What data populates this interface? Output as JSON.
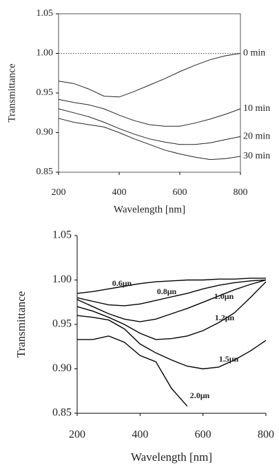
{
  "chart_data": [
    {
      "type": "line",
      "xlabel": "Wavelength [nm]",
      "ylabel": "Transmittance",
      "frame": "box",
      "refline": 1.0,
      "x": [
        200,
        250,
        300,
        350,
        400,
        450,
        500,
        550,
        600,
        650,
        700,
        750,
        800
      ],
      "series": [
        {
          "name": "0 min",
          "color": "#222222",
          "values": [
            0.965,
            0.962,
            0.955,
            0.946,
            0.945,
            0.952,
            0.96,
            0.968,
            0.977,
            0.985,
            0.992,
            0.997,
            1.0
          ]
        },
        {
          "name": "10 min",
          "color": "#222222",
          "values": [
            0.942,
            0.938,
            0.935,
            0.93,
            0.922,
            0.915,
            0.91,
            0.908,
            0.908,
            0.912,
            0.917,
            0.923,
            0.93
          ]
        },
        {
          "name": "20 min",
          "color": "#222222",
          "values": [
            0.93,
            0.925,
            0.92,
            0.913,
            0.905,
            0.898,
            0.892,
            0.888,
            0.885,
            0.885,
            0.887,
            0.891,
            0.895
          ]
        },
        {
          "name": "30 min",
          "color": "#222222",
          "values": [
            0.918,
            0.913,
            0.91,
            0.907,
            0.9,
            0.892,
            0.885,
            0.878,
            0.873,
            0.869,
            0.866,
            0.867,
            0.87
          ]
        }
      ],
      "xlim": [
        200,
        800
      ],
      "xticks": [
        200,
        400,
        600,
        800
      ],
      "ylim": [
        0.85,
        1.05
      ],
      "yticks": [
        0.85,
        {
          "value": 0.9,
          "label": "0.90"
        },
        0.95,
        {
          "value": 1.0,
          "label": "1.00"
        },
        1.05
      ]
    },
    {
      "type": "line",
      "xlabel": "Wavelength [nm]",
      "ylabel": "Transmittance",
      "frame": "axes",
      "x": [
        200,
        250,
        300,
        350,
        400,
        450,
        500,
        550,
        600,
        650,
        700,
        750,
        800
      ],
      "series": [
        {
          "name": "0.6μn",
          "color": "#000000",
          "values": [
            0.985,
            0.987,
            0.99,
            0.993,
            0.996,
            0.998,
            0.999,
            1.0,
            1.0,
            1.001,
            1.001,
            1.002,
            1.002
          ]
        },
        {
          "name": "0.8μn",
          "color": "#000000",
          "values": [
            0.98,
            0.976,
            0.972,
            0.971,
            0.973,
            0.977,
            0.981,
            0.985,
            0.99,
            0.994,
            0.997,
            0.999,
            1.0
          ]
        },
        {
          "name": "1.0μn",
          "color": "#000000",
          "values": [
            0.978,
            0.97,
            0.962,
            0.956,
            0.953,
            0.956,
            0.962,
            0.968,
            0.975,
            0.982,
            0.989,
            0.995,
            1.0
          ]
        },
        {
          "name": "1.2μn",
          "color": "#000000",
          "values": [
            0.97,
            0.965,
            0.958,
            0.95,
            0.94,
            0.933,
            0.934,
            0.937,
            0.943,
            0.952,
            0.963,
            0.98,
            0.998
          ]
        },
        {
          "name": "1.5μn",
          "color": "#000000",
          "values": [
            0.96,
            0.958,
            0.955,
            0.945,
            0.928,
            0.918,
            0.91,
            0.903,
            0.9,
            0.902,
            0.91,
            0.92,
            0.932
          ]
        },
        {
          "name": "2.0μn",
          "color": "#000000",
          "values": [
            0.933,
            0.933,
            0.937,
            0.93,
            0.915,
            0.908,
            0.878,
            0.858,
            null,
            null,
            null,
            null,
            null
          ]
        }
      ],
      "xlim": [
        200,
        800
      ],
      "xticks": [
        200,
        400,
        600,
        800
      ],
      "ylim": [
        0.85,
        1.05
      ],
      "yticks": [
        0.85,
        {
          "value": 0.9,
          "label": "0.90"
        },
        0.95,
        {
          "value": 1.0,
          "label": "1.00"
        },
        1.05
      ]
    }
  ]
}
